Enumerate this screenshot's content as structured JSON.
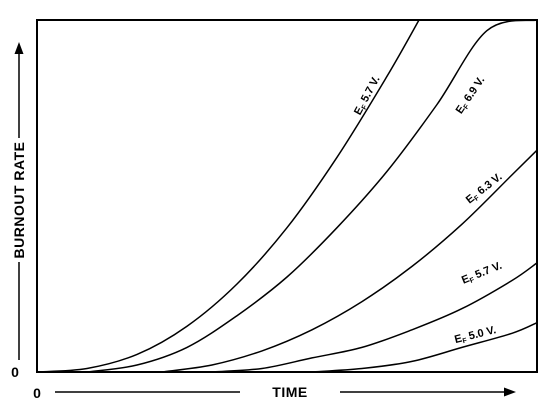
{
  "chart_data": {
    "type": "line",
    "xlabel": "TIME",
    "ylabel": "BURNOUT RATE",
    "x_origin_label": "0",
    "y_origin_label": "0",
    "xlim": [
      0,
      1
    ],
    "ylim": [
      0,
      1
    ],
    "grid": false,
    "series": [
      {
        "label_main": "E",
        "label_sub": "F",
        "label_value": "5.7 V.",
        "x": [
          0.0,
          0.1,
          0.2,
          0.3,
          0.4,
          0.5,
          0.6,
          0.7,
          0.764
        ],
        "y": [
          0.0,
          0.01,
          0.05,
          0.13,
          0.25,
          0.41,
          0.61,
          0.84,
          1.0
        ]
      },
      {
        "label_main": "E",
        "label_sub": "F",
        "label_value": "6.9 V.",
        "x": [
          0.1,
          0.2,
          0.3,
          0.4,
          0.5,
          0.6,
          0.7,
          0.8,
          0.9,
          1.0
        ],
        "y": [
          0.0,
          0.02,
          0.07,
          0.16,
          0.27,
          0.41,
          0.57,
          0.76,
          0.97,
          1.0
        ]
      },
      {
        "label_main": "E",
        "label_sub": "F",
        "label_value": "6.3 V.",
        "x": [
          0.25,
          0.35,
          0.45,
          0.55,
          0.65,
          0.75,
          0.85,
          0.95,
          1.0
        ],
        "y": [
          0.0,
          0.02,
          0.06,
          0.12,
          0.2,
          0.3,
          0.42,
          0.56,
          0.63
        ]
      },
      {
        "label_main": "E",
        "label_sub": "F",
        "label_value": "5.7 V.",
        "x": [
          0.35,
          0.45,
          0.55,
          0.65,
          0.75,
          0.85,
          0.95,
          1.0
        ],
        "y": [
          0.0,
          0.01,
          0.04,
          0.07,
          0.12,
          0.18,
          0.26,
          0.31
        ]
      },
      {
        "label_main": "E",
        "label_sub": "F",
        "label_value": "5.0 V.",
        "x": [
          0.55,
          0.65,
          0.75,
          0.85,
          0.95,
          1.0
        ],
        "y": [
          0.0,
          0.01,
          0.03,
          0.07,
          0.11,
          0.14
        ]
      }
    ]
  }
}
